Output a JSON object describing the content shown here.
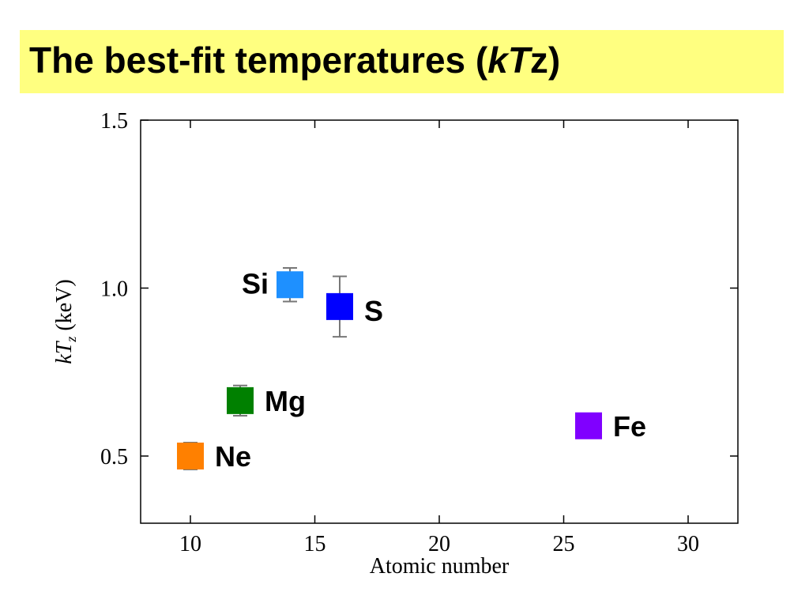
{
  "slide": {
    "title_main": "The best-fit temperatures (",
    "title_k": "k",
    "title_T": "T",
    "title_z": "z",
    "title_close": ")",
    "title_bg": "#ffff80"
  },
  "chart_data": {
    "type": "scatter",
    "xlabel": "Atomic number",
    "ylabel_k": "k",
    "ylabel_T": "T",
    "ylabel_sub": "z",
    "ylabel_unit": " (keV)",
    "xlim": [
      8,
      32
    ],
    "ylim": [
      0.3,
      1.5
    ],
    "xticks": [
      10,
      15,
      20,
      25,
      30
    ],
    "yticks": [
      0.5,
      1.0,
      1.5
    ],
    "xtick_labels": [
      "10",
      "15",
      "20",
      "25",
      "30"
    ],
    "ytick_labels": [
      "0.5",
      "1.0",
      "1.5"
    ],
    "grid": false,
    "points": [
      {
        "label": "Ne",
        "x": 10,
        "y": 0.5,
        "err": 0.04,
        "color": "#ff8000",
        "label_side": "right"
      },
      {
        "label": "Mg",
        "x": 12,
        "y": 0.665,
        "err": 0.045,
        "color": "#008000",
        "label_side": "right"
      },
      {
        "label": "Si",
        "x": 14,
        "y": 1.01,
        "err": 0.05,
        "color": "#1e90ff",
        "label_side": "left"
      },
      {
        "label": "S",
        "x": 16,
        "y": 0.945,
        "err": 0.09,
        "color": "#0000ff",
        "label_side": "right"
      },
      {
        "label": "Fe",
        "x": 26,
        "y": 0.59,
        "err": 0,
        "color": "#8000ff",
        "label_side": "right"
      }
    ]
  }
}
